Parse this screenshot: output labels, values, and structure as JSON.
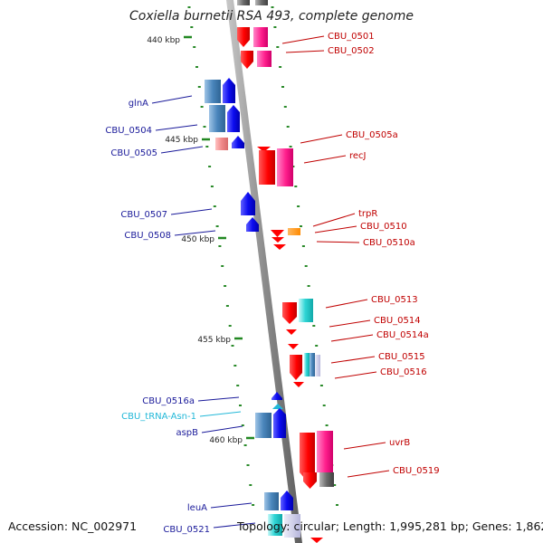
{
  "title": "Coxiella burnetii RSA 493, complete genome",
  "footer": {
    "accession": "Accession: NC_002971",
    "summary": "Topology: circular; Length: 1,995,281 bp; Genes: 1,862"
  },
  "scale_marks": [
    "440 kbp",
    "445 kbp",
    "450 kbp",
    "455 kbp",
    "460 kbp"
  ],
  "left_labels": [
    "glnA",
    "CBU_0504",
    "CBU_0505",
    "CBU_0507",
    "CBU_0508",
    "CBU_0516a",
    "CBU_tRNA-Asn-1",
    "aspB",
    "leuA",
    "CBU_0521"
  ],
  "right_labels": [
    "CBU_0501",
    "CBU_0502",
    "CBU_0505a",
    "recJ",
    "trpR",
    "CBU_0510",
    "CBU_0510a",
    "CBU_0513",
    "CBU_0514",
    "CBU_0514a",
    "CBU_0515",
    "CBU_0516",
    "uvrB",
    "CBU_0519"
  ],
  "colors": {
    "forward_strand": "#1010e0",
    "reverse_strand": "#ff0000",
    "trna": "#22b8d8",
    "backbone": "#8a8a8a",
    "tick": "#2a8a2a",
    "kbp_tick": "#228822"
  }
}
